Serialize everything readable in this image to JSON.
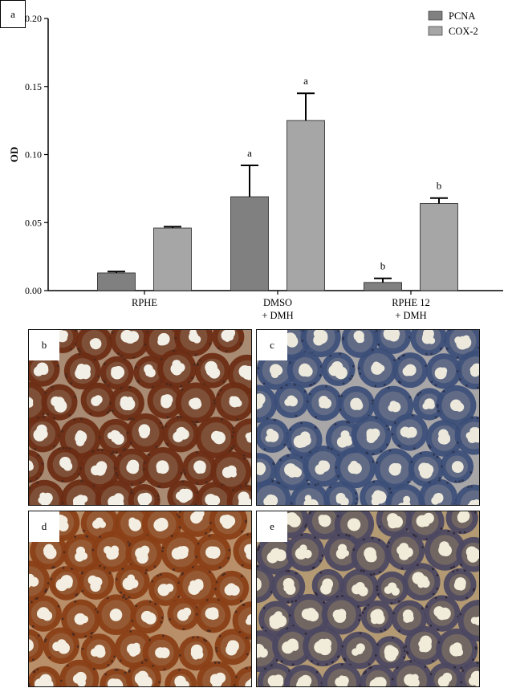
{
  "panel_a_label": "a",
  "chart_data": {
    "type": "bar",
    "ylabel": "OD",
    "xlabel": "",
    "ylim": [
      0,
      0.2
    ],
    "yticks": [
      "0.00",
      "0.05",
      "0.10",
      "0.15",
      "0.20"
    ],
    "ytick_values": [
      0,
      0.05,
      0.1,
      0.15,
      0.2
    ],
    "categories": [
      [
        "RPHE"
      ],
      [
        "DMSO",
        "+ DMH"
      ],
      [
        "RPHE 12",
        "+ DMH"
      ]
    ],
    "legend_position": "top-right",
    "series": [
      {
        "name": "PCNA",
        "color": "#808080",
        "values": [
          0.013,
          0.069,
          0.006
        ],
        "errors": [
          0.001,
          0.023,
          0.003
        ],
        "annotations": [
          "",
          "a",
          "b"
        ]
      },
      {
        "name": "COX-2",
        "color": "#a6a6a6",
        "values": [
          0.046,
          0.125,
          0.064
        ],
        "errors": [
          0.001,
          0.02,
          0.004
        ],
        "annotations": [
          "",
          "a",
          "b"
        ]
      }
    ]
  },
  "panels": [
    {
      "id": "b",
      "label": "b",
      "stain": "strong-brown"
    },
    {
      "id": "c",
      "label": "c",
      "stain": "blue"
    },
    {
      "id": "d",
      "label": "d",
      "stain": "brown"
    },
    {
      "id": "e",
      "label": "e",
      "stain": "mixed"
    }
  ]
}
